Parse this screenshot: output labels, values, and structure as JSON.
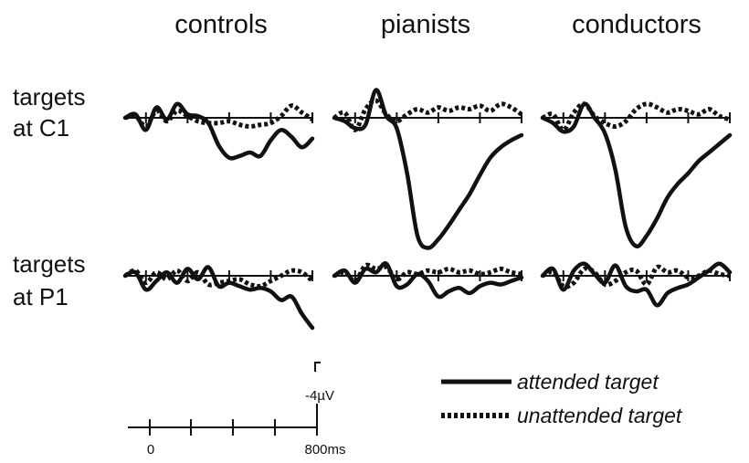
{
  "colors": {
    "trace": "#111111",
    "background": "#ffffff"
  },
  "chart_data": {
    "type": "line",
    "columns": [
      "controls",
      "pianists",
      "conductors"
    ],
    "rows": [
      {
        "line1": "targets",
        "line2": "at C1"
      },
      {
        "line1": "targets",
        "line2": "at P1"
      }
    ],
    "scale": {
      "time_start_label": "0",
      "time_end_label": "800ms",
      "amplitude_label": "-4µV",
      "time_ms": [
        0,
        800
      ],
      "amplitude_uV": -4,
      "negative_up": false
    },
    "legend": {
      "attended": "attended target",
      "unattended": "unattended target",
      "attended_style": "solid",
      "unattended_style": "dotted"
    },
    "x_ms": [
      -100,
      -50,
      0,
      50,
      100,
      150,
      200,
      250,
      300,
      350,
      400,
      450,
      500,
      550,
      600,
      650,
      700,
      750,
      800
    ],
    "panels": [
      {
        "row": 0,
        "col": 0,
        "attended": [
          0,
          0.2,
          -0.7,
          0.6,
          -0.1,
          0.8,
          0.2,
          0.1,
          -0.3,
          -1.6,
          -2.3,
          -2.2,
          -2.0,
          -2.2,
          -1.3,
          -0.7,
          -1.1,
          -1.7,
          -1.2
        ],
        "unattended": [
          0,
          0.1,
          -0.5,
          0.4,
          -0.2,
          0.4,
          0.1,
          -0.2,
          -0.3,
          -0.3,
          -0.2,
          -0.4,
          -0.5,
          -0.4,
          -0.3,
          0.1,
          0.7,
          0.3,
          -0.1
        ]
      },
      {
        "row": 0,
        "col": 1,
        "attended": [
          0,
          -0.2,
          -0.6,
          -0.4,
          1.6,
          0.1,
          -0.6,
          -3.2,
          -6.8,
          -7.5,
          -7.0,
          -6.2,
          -5.3,
          -4.4,
          -3.3,
          -2.3,
          -1.7,
          -1.3,
          -1.0
        ],
        "unattended": [
          0,
          0.3,
          -0.7,
          0.5,
          1.0,
          0.2,
          -0.2,
          0.2,
          0.5,
          0.3,
          0.6,
          0.4,
          0.6,
          0.5,
          0.7,
          0.4,
          0.8,
          0.6,
          0.2
        ]
      },
      {
        "row": 0,
        "col": 2,
        "attended": [
          0,
          -0.3,
          -0.8,
          -0.5,
          0.8,
          0.0,
          -0.9,
          -3.0,
          -6.3,
          -7.4,
          -6.8,
          -5.8,
          -4.6,
          -3.8,
          -3.2,
          -2.5,
          -2.0,
          -1.5,
          -1.0
        ],
        "unattended": [
          0,
          0.2,
          -0.7,
          0.3,
          0.8,
          0.1,
          -0.3,
          -0.5,
          -0.2,
          0.5,
          0.8,
          0.6,
          0.3,
          0.5,
          0.4,
          0.2,
          0.5,
          0.1,
          -0.1
        ]
      },
      {
        "row": 1,
        "col": 0,
        "attended": [
          0,
          0.2,
          -0.8,
          -0.3,
          0.2,
          -0.4,
          0.4,
          -0.2,
          0.5,
          -0.6,
          -0.4,
          -0.6,
          -0.8,
          -0.7,
          -0.9,
          -1.4,
          -1.2,
          -2.2,
          -3.0
        ],
        "unattended": [
          0,
          0.3,
          -0.4,
          0.2,
          -0.2,
          0.3,
          -0.3,
          0.2,
          -0.5,
          -0.4,
          -0.3,
          -0.2,
          -0.5,
          -0.6,
          -0.3,
          0.0,
          0.3,
          0.2,
          -0.3
        ]
      },
      {
        "row": 1,
        "col": 1,
        "attended": [
          0,
          0.3,
          -0.4,
          0.4,
          0.2,
          0.7,
          -0.6,
          -0.5,
          0.1,
          -0.3,
          -1.2,
          -0.9,
          -0.7,
          -1.0,
          -0.6,
          -0.4,
          -0.5,
          -0.3,
          -0.1
        ],
        "unattended": [
          0,
          0.2,
          -0.3,
          0.6,
          0.4,
          0.5,
          -0.2,
          0.2,
          0.1,
          0.3,
          0.2,
          0.4,
          0.2,
          0.3,
          0.1,
          0.2,
          0.4,
          0.2,
          0.1
        ]
      },
      {
        "row": 1,
        "col": 2,
        "attended": [
          0,
          0.4,
          -0.8,
          0.3,
          0.7,
          0.1,
          -0.4,
          0.6,
          -0.6,
          -0.9,
          -0.8,
          -1.7,
          -1.0,
          -0.7,
          -0.5,
          -0.1,
          0.3,
          0.7,
          0.2
        ],
        "unattended": [
          0,
          0.2,
          -0.6,
          -0.4,
          0.4,
          0.2,
          -0.5,
          -0.3,
          0.2,
          0.3,
          -0.5,
          0.5,
          0.2,
          0.3,
          -0.1,
          0.0,
          0.3,
          0.1,
          0.0
        ]
      }
    ]
  }
}
